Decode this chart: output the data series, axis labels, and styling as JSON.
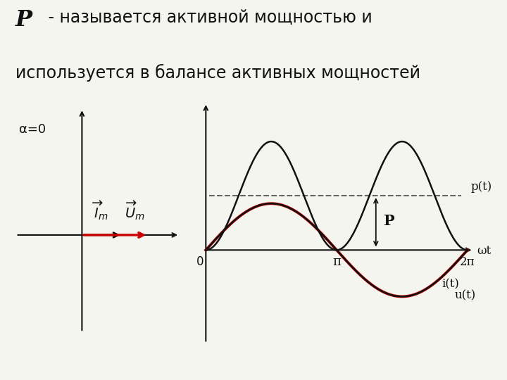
{
  "title_bold": "P",
  "alpha_label": "α=0",
  "pt_label": "p(t)",
  "it_label": "i(t)",
  "ut_label": "u(t)",
  "P_label": "P",
  "wt_label": "ωt",
  "pi_label": "π",
  "two_pi_label": "2π",
  "zero_label": "0",
  "bg_color": "#f5f5f0",
  "black": "#111111",
  "red": "#cc0000",
  "dashed_color": "#666666"
}
